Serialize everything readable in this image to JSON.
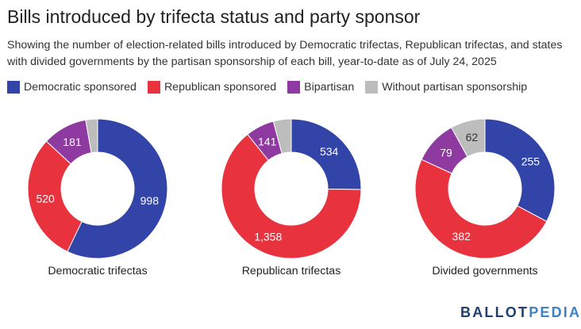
{
  "title": "Bills introduced by trifecta status and party sponsor",
  "subtitle": "Showing the number of election-related bills introduced by Democratic trifectas, Republican trifectas, and states with divided governments by the partisan sponsorship of each bill, year-to-date as of July 24, 2025",
  "legend": [
    {
      "label": "Democratic sponsored",
      "color": "#3244a8"
    },
    {
      "label": "Republican sponsored",
      "color": "#e8333f"
    },
    {
      "label": "Bipartisan",
      "color": "#8e3aa0"
    },
    {
      "label": "Without partisan sponsorship",
      "color": "#bdbdbd"
    }
  ],
  "chart_data": [
    {
      "type": "pie",
      "title": "Democratic trifectas",
      "categories": [
        "Democratic sponsored",
        "Republican sponsored",
        "Bipartisan",
        "Without partisan sponsorship"
      ],
      "values": [
        998,
        520,
        181,
        48
      ],
      "data_labels": [
        "998",
        "520",
        "181",
        ""
      ],
      "donut": true
    },
    {
      "type": "pie",
      "title": "Republican trifectas",
      "categories": [
        "Democratic sponsored",
        "Republican sponsored",
        "Bipartisan",
        "Without partisan sponsorship"
      ],
      "values": [
        534,
        1358,
        141,
        88
      ],
      "data_labels": [
        "534",
        "1,358",
        "141",
        ""
      ],
      "donut": true
    },
    {
      "type": "pie",
      "title": "Divided governments",
      "categories": [
        "Democratic sponsored",
        "Republican sponsored",
        "Bipartisan",
        "Without partisan sponsorship"
      ],
      "values": [
        255,
        382,
        79,
        62
      ],
      "data_labels": [
        "255",
        "382",
        "79",
        "62"
      ],
      "donut": true
    }
  ],
  "logo": {
    "part1": "BALLOT",
    "part2": "PEDIA"
  }
}
